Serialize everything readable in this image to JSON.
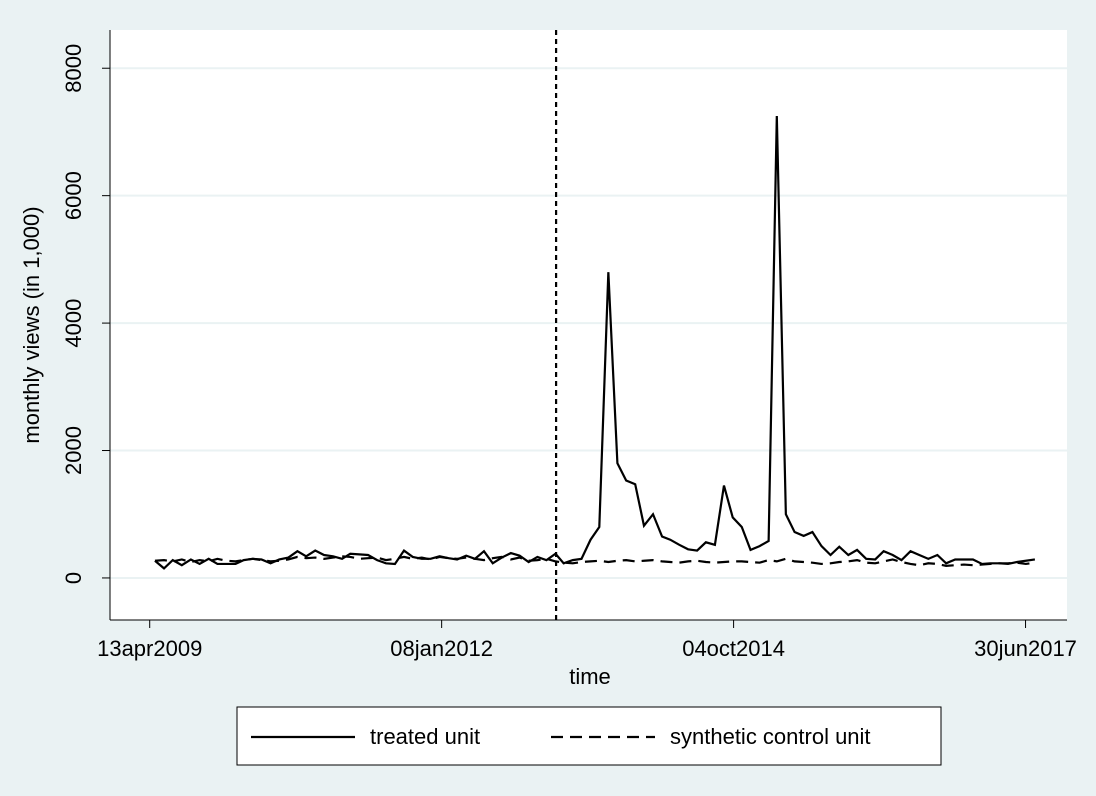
{
  "chart_data": {
    "type": "line",
    "xlabel": "time",
    "ylabel": "monthly views (in 1,000)",
    "x": [
      "2009-05-01",
      "2009-06-01",
      "2009-07-01",
      "2009-08-01",
      "2009-09-01",
      "2009-10-01",
      "2009-11-01",
      "2009-12-01",
      "2010-01-01",
      "2010-02-01",
      "2010-03-01",
      "2010-04-01",
      "2010-05-01",
      "2010-06-01",
      "2010-07-01",
      "2010-08-01",
      "2010-09-01",
      "2010-10-01",
      "2010-11-01",
      "2010-12-01",
      "2011-01-01",
      "2011-02-01",
      "2011-03-01",
      "2011-04-01",
      "2011-05-01",
      "2011-06-01",
      "2011-07-01",
      "2011-08-01",
      "2011-09-01",
      "2011-10-01",
      "2011-11-01",
      "2011-12-01",
      "2012-01-01",
      "2012-02-01",
      "2012-03-01",
      "2012-04-01",
      "2012-05-01",
      "2012-06-01",
      "2012-07-01",
      "2012-08-01",
      "2012-09-01",
      "2012-10-01",
      "2012-11-01",
      "2012-12-01",
      "2013-01-01",
      "2013-02-01",
      "2013-03-01",
      "2013-04-01",
      "2013-05-01",
      "2013-06-01",
      "2013-07-01",
      "2013-08-01",
      "2013-09-01",
      "2013-10-01",
      "2013-11-01",
      "2013-12-01",
      "2014-01-01",
      "2014-02-01",
      "2014-03-01",
      "2014-04-01",
      "2014-05-01",
      "2014-06-01",
      "2014-07-01",
      "2014-08-01",
      "2014-09-01",
      "2014-10-01",
      "2014-11-01",
      "2014-12-01",
      "2015-01-01",
      "2015-02-01",
      "2015-03-01",
      "2015-04-01",
      "2015-05-01",
      "2015-06-01",
      "2015-07-01",
      "2015-08-01",
      "2015-09-01",
      "2015-10-01",
      "2015-11-01",
      "2015-12-01",
      "2016-01-01",
      "2016-02-01",
      "2016-03-01",
      "2016-04-01",
      "2016-05-01",
      "2016-06-01",
      "2016-07-01",
      "2016-08-01",
      "2016-09-01",
      "2016-10-01",
      "2016-11-01",
      "2016-12-01",
      "2017-01-01",
      "2017-02-01",
      "2017-03-01",
      "2017-04-01",
      "2017-05-01",
      "2017-06-01",
      "2017-07-01",
      "2017-08-01"
    ],
    "series": [
      {
        "name": "treated unit",
        "color": "#000000",
        "style": "solid",
        "values": [
          270,
          150,
          280,
          200,
          290,
          220,
          300,
          220,
          220,
          220,
          280,
          300,
          290,
          230,
          290,
          320,
          420,
          340,
          430,
          360,
          340,
          300,
          380,
          370,
          360,
          280,
          230,
          220,
          430,
          330,
          300,
          300,
          340,
          310,
          290,
          350,
          300,
          420,
          230,
          320,
          390,
          350,
          250,
          330,
          280,
          380,
          230,
          280,
          300,
          600,
          800,
          4800,
          1800,
          1530,
          1470,
          820,
          1000,
          650,
          600,
          520,
          450,
          430,
          560,
          520,
          1450,
          950,
          800,
          440,
          500,
          580,
          7250,
          1000,
          720,
          660,
          720,
          500,
          360,
          490,
          360,
          440,
          300,
          290,
          420,
          360,
          280,
          420,
          360,
          300,
          360,
          230,
          290,
          290,
          290,
          220,
          230,
          230,
          220,
          250,
          270,
          290
        ]
      },
      {
        "name": "synthetic control unit",
        "color": "#000000",
        "style": "dashed",
        "values": [
          270,
          280,
          260,
          290,
          250,
          280,
          260,
          300,
          270,
          260,
          280,
          300,
          280,
          260,
          270,
          290,
          330,
          310,
          320,
          300,
          320,
          340,
          330,
          300,
          310,
          320,
          280,
          300,
          330,
          300,
          320,
          290,
          330,
          310,
          300,
          320,
          300,
          280,
          310,
          330,
          290,
          320,
          270,
          280,
          300,
          260,
          240,
          230,
          250,
          260,
          270,
          250,
          270,
          280,
          260,
          270,
          280,
          260,
          250,
          240,
          260,
          270,
          250,
          240,
          250,
          260,
          260,
          250,
          240,
          280,
          260,
          300,
          260,
          250,
          240,
          220,
          230,
          250,
          260,
          280,
          240,
          230,
          260,
          290,
          250,
          220,
          200,
          230,
          220,
          190,
          200,
          210,
          200,
          210,
          220,
          230,
          230,
          240,
          220,
          240
        ]
      }
    ],
    "xline": "2013-02-03",
    "xlim": [
      "2008-11-28",
      "2017-11-19"
    ],
    "xticks": [
      {
        "value": "2009-04-13",
        "label": "13apr2009"
      },
      {
        "value": "2012-01-08",
        "label": "08jan2012"
      },
      {
        "value": "2014-10-04",
        "label": "04oct2014"
      },
      {
        "value": "2017-06-30",
        "label": "30jun2017"
      }
    ],
    "ylim": [
      -660,
      8600
    ],
    "yticks": [
      0,
      2000,
      4000,
      6000,
      8000
    ],
    "grid": true
  }
}
